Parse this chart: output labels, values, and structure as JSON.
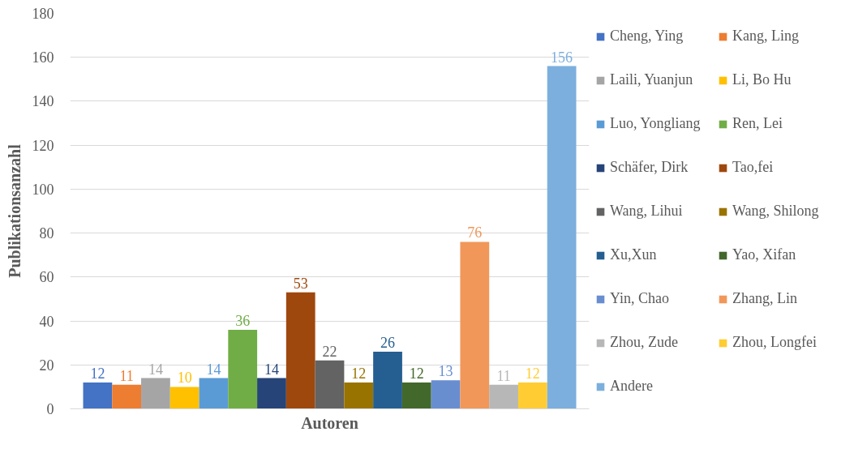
{
  "chart_data": {
    "type": "bar",
    "categories": [
      null
    ],
    "xlabel": "Autoren",
    "ylabel": "Publikationsanzahl",
    "ylim": [
      0,
      180
    ],
    "yticks": [
      0,
      20,
      40,
      60,
      80,
      100,
      120,
      140,
      160,
      180
    ],
    "grid": "y",
    "legend": "right",
    "data_labels": true,
    "series": [
      {
        "name": "Cheng, Ying",
        "color": "#4472c4",
        "values": [
          12
        ]
      },
      {
        "name": "Kang, Ling",
        "color": "#ed7d31",
        "values": [
          11
        ]
      },
      {
        "name": "Laili, Yuanjun",
        "color": "#a5a5a5",
        "values": [
          14
        ]
      },
      {
        "name": "Li, Bo Hu",
        "color": "#ffc000",
        "values": [
          10
        ]
      },
      {
        "name": "Luo, Yongliang",
        "color": "#5b9bd5",
        "values": [
          14
        ]
      },
      {
        "name": "Ren, Lei",
        "color": "#70ad47",
        "values": [
          36
        ]
      },
      {
        "name": "Schäfer, Dirk",
        "color": "#264478",
        "values": [
          14
        ]
      },
      {
        "name": "Tao,fei",
        "color": "#9e480e",
        "values": [
          53
        ]
      },
      {
        "name": "Wang, Lihui",
        "color": "#636363",
        "values": [
          22
        ]
      },
      {
        "name": "Wang, Shilong",
        "color": "#997300",
        "values": [
          12
        ]
      },
      {
        "name": "Xu,Xun",
        "color": "#255e91",
        "values": [
          26
        ]
      },
      {
        "name": "Yao, Xifan",
        "color": "#43682b",
        "values": [
          12
        ]
      },
      {
        "name": "Yin, Chao",
        "color": "#698ed0",
        "values": [
          13
        ]
      },
      {
        "name": "Zhang, Lin",
        "color": "#f1975a",
        "values": [
          76
        ]
      },
      {
        "name": "Zhou, Zude",
        "color": "#b7b7b7",
        "values": [
          11
        ]
      },
      {
        "name": "Zhou, Longfei",
        "color": "#ffcd33",
        "values": [
          12
        ]
      },
      {
        "name": "Andere",
        "color": "#7cafdd",
        "values": [
          156
        ]
      }
    ]
  }
}
